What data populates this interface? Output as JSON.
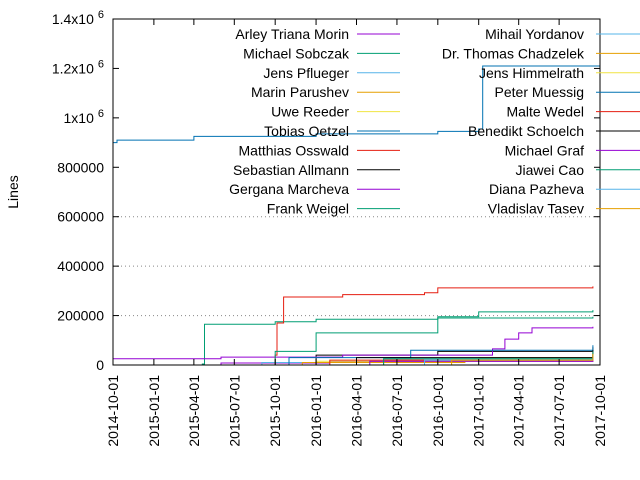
{
  "chart_data": {
    "type": "line",
    "title": "",
    "xlabel": "",
    "ylabel": "Lines",
    "y_ticks": [
      {
        "value": 0,
        "label": "0",
        "sup": ""
      },
      {
        "value": 200000,
        "label": "200000",
        "sup": ""
      },
      {
        "value": 400000,
        "label": "400000",
        "sup": ""
      },
      {
        "value": 600000,
        "label": "600000",
        "sup": ""
      },
      {
        "value": 800000,
        "label": "800000",
        "sup": ""
      },
      {
        "value": 1000000,
        "label": "1x10",
        "sup": "6"
      },
      {
        "value": 1200000,
        "label": "1.2x10",
        "sup": "6"
      },
      {
        "value": 1400000,
        "label": "1.4x10",
        "sup": "6"
      }
    ],
    "ylim": [
      0,
      1400000
    ],
    "x_ticks": [
      "2014-10-01",
      "2015-01-01",
      "2015-04-01",
      "2015-07-01",
      "2015-10-01",
      "2016-01-01",
      "2016-04-01",
      "2016-07-01",
      "2016-10-01",
      "2017-01-01",
      "2017-04-01",
      "2017-07-01",
      "2017-10-01"
    ],
    "xlim": [
      "2014-10-01",
      "2017-10-01"
    ],
    "grid": "dotted horizontal at 200000, 400000, 600000",
    "legend_placement": "top, two columns",
    "series": [
      {
        "name": "Arley Triana Morin",
        "color": "#9400d3",
        "points": [
          [
            "2014-10-01",
            0
          ],
          [
            "2015-06-01",
            8000
          ],
          [
            "2016-02-01",
            14000
          ],
          [
            "2017-09-15",
            20000
          ]
        ]
      },
      {
        "name": "Michael Sobczak",
        "color": "#009e73",
        "points": [
          [
            "2014-11-01",
            0
          ],
          [
            "2015-04-20",
            4000
          ],
          [
            "2015-04-25",
            165000
          ],
          [
            "2015-10-01",
            175000
          ],
          [
            "2016-01-01",
            185000
          ],
          [
            "2016-10-01",
            190000
          ],
          [
            "2017-09-15",
            195000
          ]
        ]
      },
      {
        "name": "Jens Pflueger",
        "color": "#56b4e9",
        "points": [
          [
            "2014-10-15",
            0
          ],
          [
            "2015-09-01",
            10000
          ],
          [
            "2016-06-01",
            20000
          ],
          [
            "2017-09-15",
            30000
          ]
        ]
      },
      {
        "name": "Marin Parushev",
        "color": "#e69f00",
        "points": [
          [
            "2014-12-01",
            0
          ],
          [
            "2015-12-01",
            10000
          ],
          [
            "2016-12-01",
            20000
          ],
          [
            "2017-09-15",
            30000
          ]
        ]
      },
      {
        "name": "Uwe Reeder",
        "color": "#f0e442",
        "points": [
          [
            "2015-01-01",
            0
          ],
          [
            "2016-01-01",
            15000
          ],
          [
            "2017-01-01",
            30000
          ],
          [
            "2017-09-15",
            40000
          ]
        ]
      },
      {
        "name": "Tobias Oetzel",
        "color": "#0072b2",
        "points": [
          [
            "2014-10-01",
            900000
          ],
          [
            "2014-10-10",
            910000
          ],
          [
            "2015-04-01",
            925000
          ],
          [
            "2016-01-01",
            935000
          ],
          [
            "2016-10-01",
            945000
          ],
          [
            "2017-01-01",
            955000
          ],
          [
            "2017-01-10",
            1210000
          ],
          [
            "2017-10-01",
            1215000
          ]
        ]
      },
      {
        "name": "Matthias Osswald",
        "color": "#e51e10",
        "points": [
          [
            "2015-01-01",
            0
          ],
          [
            "2015-10-01",
            40000
          ],
          [
            "2015-10-05",
            170000
          ],
          [
            "2015-10-20",
            275000
          ],
          [
            "2016-03-01",
            285000
          ],
          [
            "2016-09-01",
            292000
          ],
          [
            "2016-10-01",
            312000
          ],
          [
            "2017-09-15",
            318000
          ]
        ]
      },
      {
        "name": "Sebastian Allmann",
        "color": "#000000",
        "points": [
          [
            "2015-01-01",
            0
          ],
          [
            "2016-01-01",
            40000
          ],
          [
            "2016-10-01",
            55000
          ],
          [
            "2017-09-15",
            72000
          ]
        ]
      },
      {
        "name": "Gergana Marcheva",
        "color": "#9400d3",
        "points": [
          [
            "2014-10-01",
            25000
          ],
          [
            "2015-06-01",
            32000
          ],
          [
            "2016-03-01",
            40000
          ],
          [
            "2017-02-01",
            65000
          ],
          [
            "2017-03-01",
            105000
          ],
          [
            "2017-04-01",
            130000
          ],
          [
            "2017-05-01",
            150000
          ],
          [
            "2017-09-15",
            155000
          ]
        ]
      },
      {
        "name": "Frank Weigel",
        "color": "#009e73",
        "points": [
          [
            "2015-04-01",
            0
          ],
          [
            "2015-10-01",
            55000
          ],
          [
            "2016-01-01",
            130000
          ],
          [
            "2016-10-01",
            195000
          ],
          [
            "2017-01-01",
            215000
          ],
          [
            "2017-09-15",
            222000
          ]
        ]
      },
      {
        "name": "Mihail Yordanov",
        "color": "#56b4e9",
        "points": [
          [
            "2015-03-01",
            0
          ],
          [
            "2016-06-01",
            25000
          ],
          [
            "2017-09-15",
            45000
          ]
        ]
      },
      {
        "name": "Dr. Thomas Chadzelek",
        "color": "#e69f00",
        "points": [
          [
            "2015-06-01",
            0
          ],
          [
            "2016-06-01",
            20000
          ],
          [
            "2017-09-15",
            50000
          ]
        ]
      },
      {
        "name": "Jens Himmelrath",
        "color": "#f0e442",
        "points": [
          [
            "2015-09-01",
            0
          ],
          [
            "2016-09-01",
            15000
          ],
          [
            "2017-09-15",
            35000
          ]
        ]
      },
      {
        "name": "Peter Muessig",
        "color": "#0072b2",
        "points": [
          [
            "2015-01-01",
            0
          ],
          [
            "2015-11-01",
            30000
          ],
          [
            "2016-08-01",
            60000
          ],
          [
            "2017-09-15",
            80000
          ]
        ]
      },
      {
        "name": "Malte Wedel",
        "color": "#e51e10",
        "points": [
          [
            "2015-02-01",
            0
          ],
          [
            "2016-02-01",
            20000
          ],
          [
            "2017-09-15",
            40000
          ]
        ]
      },
      {
        "name": "Benedikt Schoelch",
        "color": "#000000",
        "points": [
          [
            "2015-03-01",
            0
          ],
          [
            "2016-04-01",
            30000
          ],
          [
            "2017-09-15",
            60000
          ]
        ]
      },
      {
        "name": "Michael Graf",
        "color": "#9400d3",
        "points": [
          [
            "2015-04-01",
            0
          ],
          [
            "2016-05-01",
            15000
          ],
          [
            "2017-09-15",
            25000
          ]
        ]
      },
      {
        "name": "Jiawei Cao",
        "color": "#009e73",
        "points": [
          [
            "2015-05-01",
            0
          ],
          [
            "2016-06-01",
            25000
          ],
          [
            "2017-09-15",
            55000
          ]
        ]
      },
      {
        "name": "Diana Pazheva",
        "color": "#56b4e9",
        "points": [
          [
            "2015-08-01",
            0
          ],
          [
            "2016-09-01",
            20000
          ],
          [
            "2017-09-15",
            40000
          ]
        ]
      },
      {
        "name": "Vladislav Tasev",
        "color": "#e69f00",
        "points": [
          [
            "2015-10-01",
            0
          ],
          [
            "2016-11-01",
            20000
          ],
          [
            "2017-09-15",
            45000
          ]
        ]
      }
    ]
  }
}
